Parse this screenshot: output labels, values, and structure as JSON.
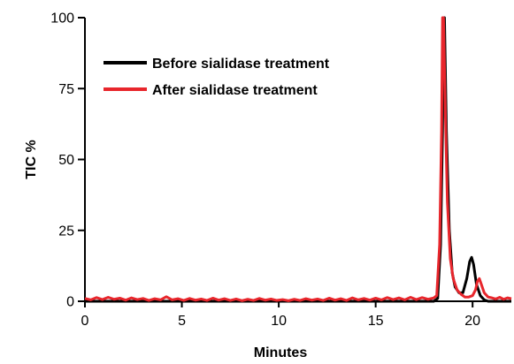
{
  "chart_data": {
    "type": "line",
    "title": "",
    "xlabel": "Minutes",
    "ylabel": "TIC %",
    "xlim": [
      0,
      22
    ],
    "ylim": [
      0,
      100
    ],
    "x_ticks": [
      0,
      5,
      10,
      15,
      20
    ],
    "y_ticks": [
      0,
      25,
      50,
      75,
      100
    ],
    "x_tick_labels": [
      "0",
      "5",
      "10",
      "15",
      "20"
    ],
    "y_tick_labels": [
      "0",
      "25",
      "50",
      "75",
      "100"
    ],
    "grid": false,
    "legend_position": "top-left",
    "series": [
      {
        "name": "Before sialidase treatment",
        "color": "#000000",
        "points": [
          [
            0,
            0
          ],
          [
            18.0,
            0
          ],
          [
            18.2,
            1
          ],
          [
            18.35,
            20
          ],
          [
            18.45,
            60
          ],
          [
            18.5,
            100
          ],
          [
            18.55,
            100
          ],
          [
            18.65,
            60
          ],
          [
            18.8,
            25
          ],
          [
            18.95,
            10
          ],
          [
            19.1,
            5
          ],
          [
            19.3,
            3
          ],
          [
            19.5,
            3
          ],
          [
            19.7,
            8
          ],
          [
            19.85,
            14
          ],
          [
            19.95,
            15.5
          ],
          [
            20.05,
            13
          ],
          [
            20.2,
            6
          ],
          [
            20.4,
            2
          ],
          [
            20.6,
            0.5
          ],
          [
            20.8,
            0
          ],
          [
            22,
            0
          ]
        ]
      },
      {
        "name": "After sialidase treatment",
        "color": "#e8262c",
        "points": [
          [
            0,
            1
          ],
          [
            0.3,
            0.5
          ],
          [
            0.6,
            1.3
          ],
          [
            0.9,
            0.6
          ],
          [
            1.2,
            1.4
          ],
          [
            1.5,
            0.7
          ],
          [
            1.8,
            1.1
          ],
          [
            2.1,
            0.4
          ],
          [
            2.4,
            1.2
          ],
          [
            2.7,
            0.6
          ],
          [
            3.0,
            1.0
          ],
          [
            3.3,
            0.3
          ],
          [
            3.6,
            0.9
          ],
          [
            3.9,
            0.5
          ],
          [
            4.2,
            1.6
          ],
          [
            4.5,
            0.5
          ],
          [
            4.8,
            0.9
          ],
          [
            5.1,
            0.3
          ],
          [
            5.4,
            1.0
          ],
          [
            5.7,
            0.4
          ],
          [
            6.0,
            0.8
          ],
          [
            6.3,
            0.3
          ],
          [
            6.6,
            1.1
          ],
          [
            6.9,
            0.4
          ],
          [
            7.2,
            0.9
          ],
          [
            7.5,
            0.3
          ],
          [
            7.8,
            0.8
          ],
          [
            8.1,
            0.2
          ],
          [
            8.4,
            0.7
          ],
          [
            8.7,
            0.3
          ],
          [
            9.0,
            1.0
          ],
          [
            9.3,
            0.4
          ],
          [
            9.6,
            0.8
          ],
          [
            9.9,
            0.3
          ],
          [
            10.2,
            0.6
          ],
          [
            10.5,
            0.2
          ],
          [
            10.8,
            0.7
          ],
          [
            11.1,
            0.3
          ],
          [
            11.4,
            0.9
          ],
          [
            11.7,
            0.4
          ],
          [
            12.0,
            0.8
          ],
          [
            12.3,
            0.3
          ],
          [
            12.6,
            1.1
          ],
          [
            12.9,
            0.4
          ],
          [
            13.2,
            0.9
          ],
          [
            13.5,
            0.3
          ],
          [
            13.8,
            1.2
          ],
          [
            14.1,
            0.5
          ],
          [
            14.4,
            1.0
          ],
          [
            14.7,
            0.4
          ],
          [
            15.0,
            1.1
          ],
          [
            15.3,
            0.5
          ],
          [
            15.6,
            1.3
          ],
          [
            15.9,
            0.6
          ],
          [
            16.2,
            1.2
          ],
          [
            16.5,
            0.5
          ],
          [
            16.8,
            1.4
          ],
          [
            17.1,
            0.6
          ],
          [
            17.4,
            1.3
          ],
          [
            17.7,
            0.7
          ],
          [
            18.0,
            1.2
          ],
          [
            18.15,
            2
          ],
          [
            18.3,
            20
          ],
          [
            18.4,
            60
          ],
          [
            18.45,
            100
          ],
          [
            18.5,
            100
          ],
          [
            18.6,
            65
          ],
          [
            18.7,
            35
          ],
          [
            18.85,
            15
          ],
          [
            19.0,
            8
          ],
          [
            19.2,
            4
          ],
          [
            19.4,
            2.5
          ],
          [
            19.6,
            1.5
          ],
          [
            19.8,
            1.5
          ],
          [
            20.0,
            2
          ],
          [
            20.15,
            4
          ],
          [
            20.25,
            7
          ],
          [
            20.35,
            8
          ],
          [
            20.45,
            6
          ],
          [
            20.6,
            3
          ],
          [
            20.8,
            1.5
          ],
          [
            21.0,
            1.2
          ],
          [
            21.2,
            0.8
          ],
          [
            21.4,
            1.4
          ],
          [
            21.6,
            0.7
          ],
          [
            21.8,
            1.2
          ],
          [
            22.0,
            0.9
          ]
        ]
      }
    ]
  }
}
